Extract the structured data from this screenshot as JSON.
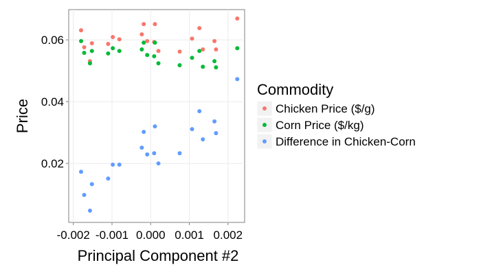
{
  "chart_data": {
    "type": "scatter",
    "x_label": "Principal Component #2",
    "y_label": "Price",
    "legend_title": "Commodity",
    "x": [
      -0.0018,
      -0.00172,
      -0.00157,
      -0.00152,
      -0.0011,
      -0.00098,
      -0.00081,
      -0.00023,
      -0.00018,
      -9e-05,
      9e-05,
      0.00011,
      0.0002,
      0.00075,
      0.00107,
      0.00126,
      0.00135,
      0.00165,
      0.00169,
      0.00224
    ],
    "series": [
      {
        "name": "Chicken Price ($/g)",
        "color": "#F8766D",
        "values": [
          0.0631,
          0.0576,
          0.0531,
          0.0589,
          0.0587,
          0.0609,
          0.0602,
          0.0618,
          0.0651,
          0.0596,
          0.0593,
          0.0651,
          0.0564,
          0.0562,
          0.0604,
          0.0638,
          0.0569,
          0.0596,
          0.0569,
          0.0669
        ]
      },
      {
        "name": "Corn Price ($/kg)",
        "color": "#00BA38",
        "values": [
          0.0596,
          0.0558,
          0.0524,
          0.0564,
          0.0556,
          0.0573,
          0.0564,
          0.0569,
          0.0591,
          0.0551,
          0.0547,
          0.0591,
          0.0524,
          0.0518,
          0.0542,
          0.0564,
          0.0513,
          0.0531,
          0.0511,
          0.0573
        ]
      },
      {
        "name": "Difference in Chicken-Corn",
        "color": "#619CFF",
        "values": [
          0.0173,
          0.0098,
          0.0047,
          0.0133,
          0.0151,
          0.0196,
          0.0196,
          0.0251,
          0.0302,
          0.0229,
          0.0233,
          0.032,
          0.02,
          0.0233,
          0.0311,
          0.0369,
          0.0278,
          0.0336,
          0.0298,
          0.0473
        ]
      }
    ],
    "xlim": [
      -0.00212,
      0.00243
    ],
    "xticks": [
      -0.002,
      -0.001,
      {
        "value": 0,
        "label": "0.000"
      },
      0.001,
      0.002
    ],
    "ylim": [
      0.0009,
      0.0698
    ],
    "yticks": [
      0.02,
      0.04,
      0.06
    ],
    "grid": true,
    "legend_position": "right"
  }
}
